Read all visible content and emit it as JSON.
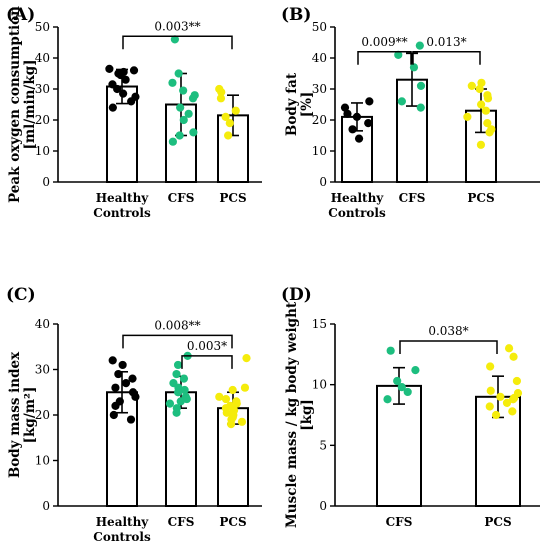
{
  "colors": {
    "healthy": "#000000",
    "cfs": "#1dbe7f",
    "pcs": "#f5ec0c",
    "axis": "#000000"
  },
  "chart_data": [
    {
      "id": "A",
      "type": "bar",
      "panel_label": "(A)",
      "ylabel": [
        "Peak oxygen consumption",
        "[ml/min/kg]"
      ],
      "ylim": [
        0,
        50
      ],
      "yticks": [
        0,
        10,
        20,
        30,
        40,
        50
      ],
      "categories": [
        "Healthy Controls",
        "CFS",
        "PCS"
      ],
      "category_lines": [
        [
          "Healthy",
          "Controls"
        ],
        [
          "CFS"
        ],
        [
          "PCS"
        ]
      ],
      "series": [
        {
          "group": "Healthy Controls",
          "color_key": "healthy",
          "mean": 30.8,
          "sd": 5.5,
          "points": [
            36,
            36.5,
            35.5,
            35,
            34.5,
            33,
            31.5,
            30,
            28.5,
            27.5,
            26,
            24
          ]
        },
        {
          "group": "CFS",
          "color_key": "cfs",
          "mean": 25,
          "sd": 10,
          "points": [
            46,
            35,
            32,
            29.5,
            28,
            27,
            24,
            22,
            20,
            16,
            15,
            13
          ]
        },
        {
          "group": "PCS",
          "color_key": "pcs",
          "mean": 21.5,
          "sd": 6.5,
          "points": [
            30,
            29,
            27,
            23,
            21,
            19,
            15
          ]
        }
      ],
      "significance": [
        {
          "from": 0,
          "to": 2,
          "label": "0.003**",
          "level": 47
        }
      ]
    },
    {
      "id": "B",
      "type": "bar",
      "panel_label": "(B)",
      "ylabel": [
        "Body fat",
        "[%]"
      ],
      "ylim": [
        0,
        50
      ],
      "yticks": [
        0,
        10,
        20,
        30,
        40,
        50
      ],
      "categories": [
        "Healthy Controls",
        "CFS",
        "PCS"
      ],
      "category_lines": [
        [
          "Healthy",
          "Controls"
        ],
        [
          "CFS"
        ],
        [
          "PCS"
        ]
      ],
      "series": [
        {
          "group": "Healthy Controls",
          "color_key": "healthy",
          "mean": 21,
          "sd": 4.5,
          "points": [
            26,
            24,
            22,
            21,
            19,
            17,
            14
          ]
        },
        {
          "group": "CFS",
          "color_key": "cfs",
          "mean": 33,
          "sd": 8.5,
          "points": [
            44,
            41,
            37,
            31,
            26,
            24
          ]
        },
        {
          "group": "PCS",
          "color_key": "pcs",
          "mean": 23,
          "sd": 7,
          "points": [
            32,
            31,
            30,
            28,
            27,
            25,
            23,
            21,
            19,
            17,
            16,
            12
          ]
        }
      ],
      "significance": [
        {
          "from": 0,
          "to": 1,
          "label": "0.009**",
          "level": 42
        },
        {
          "from": 1,
          "to": 2,
          "label": "0.013*",
          "level": 42
        }
      ]
    },
    {
      "id": "C",
      "type": "bar",
      "panel_label": "(C)",
      "ylabel": [
        "Body mass index",
        "[kg/m²]"
      ],
      "ylim": [
        0,
        40
      ],
      "yticks": [
        0,
        10,
        20,
        30,
        40
      ],
      "categories": [
        "Healthy Controls",
        "CFS",
        "PCS"
      ],
      "category_lines": [
        [
          "Healthy",
          "Controls"
        ],
        [
          "CFS"
        ],
        [
          "PCS"
        ]
      ],
      "series": [
        {
          "group": "Healthy Controls",
          "color_key": "healthy",
          "mean": 25,
          "sd": 4.5,
          "points": [
            32,
            31,
            29,
            28,
            27,
            26,
            25,
            24,
            23,
            22,
            20,
            19
          ]
        },
        {
          "group": "CFS",
          "color_key": "cfs",
          "mean": 25,
          "sd": 3.5,
          "points": [
            33,
            31,
            29,
            28,
            27,
            26,
            25.5,
            25,
            24,
            23.5,
            23,
            22.5,
            21.5,
            20.5
          ]
        },
        {
          "group": "PCS",
          "color_key": "pcs",
          "mean": 21.5,
          "sd": 3.5,
          "points": [
            32.5,
            26,
            25.5,
            24,
            23.5,
            23,
            22.5,
            22,
            21.5,
            21,
            20.5,
            20,
            19.5,
            19,
            18.5,
            18
          ]
        }
      ],
      "significance": [
        {
          "from": 0,
          "to": 2,
          "label": "0.008**",
          "level": 37.5
        },
        {
          "from": 1,
          "to": 2,
          "label": "0.003*",
          "level": 33
        }
      ]
    },
    {
      "id": "D",
      "type": "bar",
      "panel_label": "(D)",
      "ylabel": [
        "Muscle mass / kg body weight",
        "[kg]"
      ],
      "ylim": [
        0,
        15
      ],
      "yticks": [
        0,
        5,
        10,
        15
      ],
      "categories": [
        "CFS",
        "PCS"
      ],
      "category_lines": [
        [
          "CFS"
        ],
        [
          "PCS"
        ]
      ],
      "series": [
        {
          "group": "CFS",
          "color_key": "cfs",
          "mean": 9.9,
          "sd": 1.5,
          "points": [
            12.8,
            11.2,
            10.3,
            9.8,
            9.4,
            8.8
          ]
        },
        {
          "group": "PCS",
          "color_key": "pcs",
          "mean": 9,
          "sd": 1.7,
          "points": [
            13,
            12.3,
            11.5,
            10.3,
            9.5,
            9.3,
            9,
            8.9,
            8.8,
            8.5,
            8.2,
            7.8,
            7.5
          ]
        }
      ],
      "significance": [
        {
          "from": 0,
          "to": 1,
          "label": "0.038*",
          "level": 13.6
        }
      ]
    }
  ]
}
